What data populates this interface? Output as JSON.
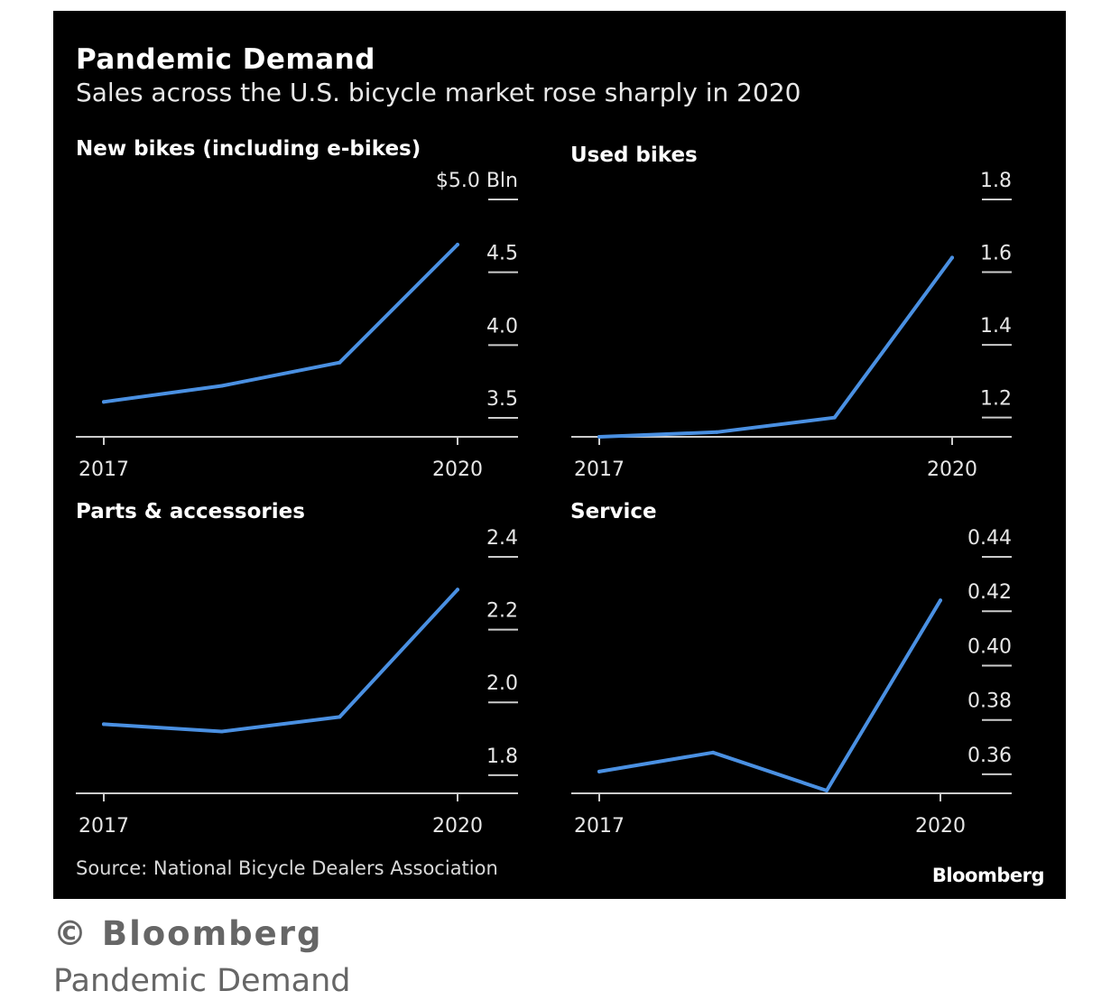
{
  "title": "Pandemic Demand",
  "subtitle": "Sales across the U.S. bicycle market rose sharply in 2020",
  "source": "Source: National Bicycle Dealers Association",
  "brand": "Bloomberg",
  "copyright": "© Bloomberg",
  "caption": "Pandemic Demand",
  "colors": {
    "background": "#000000",
    "line": "#4a90e2",
    "axis": "#cccccc",
    "text": "#ffffff"
  },
  "chart_data": [
    {
      "type": "line",
      "title": "New bikes (including e-bikes)",
      "x": [
        2017,
        2018,
        2019,
        2020
      ],
      "x_tick_labels": [
        "2017",
        "2020"
      ],
      "y_ticks": [
        3.5,
        4.0,
        4.5,
        5.0
      ],
      "y_tick_labels": [
        "3.5",
        "4.0",
        "4.5",
        "$5.0 Bln"
      ],
      "ylim": [
        3.37,
        5.0
      ],
      "series": [
        {
          "values": [
            3.61,
            3.72,
            3.88,
            4.69
          ]
        }
      ],
      "grid": false
    },
    {
      "type": "line",
      "title": "Used bikes",
      "x": [
        2017,
        2018,
        2019,
        2020
      ],
      "x_tick_labels": [
        "2017",
        "2020"
      ],
      "y_ticks": [
        1.2,
        1.4,
        1.6,
        1.8
      ],
      "y_tick_labels": [
        "1.2",
        "1.4",
        "1.6",
        "1.8"
      ],
      "ylim": [
        1.147,
        1.8
      ],
      "series": [
        {
          "values": [
            1.147,
            1.16,
            1.2,
            1.64
          ]
        }
      ],
      "grid": false
    },
    {
      "type": "line",
      "title": "Parts & accessories",
      "x": [
        2017,
        2018,
        2019,
        2020
      ],
      "x_tick_labels": [
        "2017",
        "2020"
      ],
      "y_ticks": [
        1.8,
        2.0,
        2.2,
        2.4
      ],
      "y_tick_labels": [
        "1.8",
        "2.0",
        "2.2",
        "2.4"
      ],
      "ylim": [
        1.75,
        2.4
      ],
      "series": [
        {
          "values": [
            1.94,
            1.92,
            1.96,
            2.31
          ]
        }
      ],
      "grid": false
    },
    {
      "type": "line",
      "title": "Service",
      "x": [
        2017,
        2018,
        2019,
        2020
      ],
      "x_tick_labels": [
        "2017",
        "2020"
      ],
      "y_ticks": [
        0.36,
        0.38,
        0.4,
        0.42,
        0.44
      ],
      "y_tick_labels": [
        "0.36",
        "0.38",
        "0.40",
        "0.42",
        "0.44"
      ],
      "ylim": [
        0.353,
        0.44
      ],
      "series": [
        {
          "values": [
            0.361,
            0.368,
            0.354,
            0.424
          ]
        }
      ],
      "grid": false
    }
  ]
}
